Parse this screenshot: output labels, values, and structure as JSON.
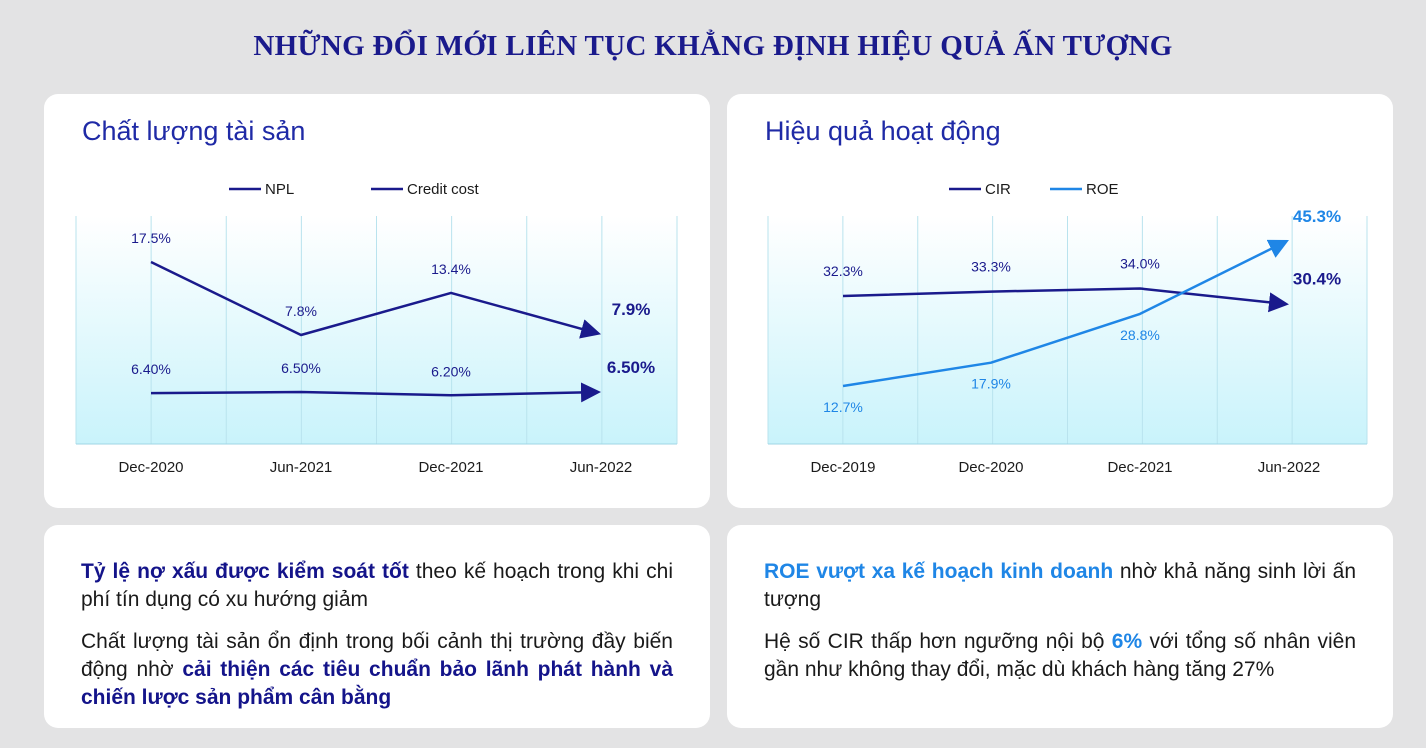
{
  "page_title": "NHỮNG ĐỔI MỚI LIÊN TỤC KHẲNG ĐỊNH HIỆU QUẢ ẤN TƯỢNG",
  "chart_data": [
    {
      "type": "line",
      "title": "Chất lượng tài sản",
      "categories": [
        "Dec-2020",
        "Jun-2021",
        "Dec-2021",
        "Jun-2022"
      ],
      "legend": "top",
      "grid": true,
      "series": [
        {
          "name": "NPL",
          "values": [
            17.5,
            7.8,
            13.4,
            7.9
          ],
          "labels": [
            "17.5%",
            "7.8%",
            "13.4%",
            "7.9%"
          ],
          "color": "#1a1a8c"
        },
        {
          "name": "Credit cost",
          "values": [
            6.4,
            6.5,
            6.2,
            6.5
          ],
          "labels": [
            "6.40%",
            "6.50%",
            "6.20%",
            "6.50%"
          ],
          "color": "#1a1a8c"
        }
      ]
    },
    {
      "type": "line",
      "title": "Hiệu quả hoạt động",
      "categories": [
        "Dec-2019",
        "Dec-2020",
        "Dec-2021",
        "Jun-2022"
      ],
      "legend": "top",
      "grid": true,
      "series": [
        {
          "name": "CIR",
          "values": [
            32.3,
            33.3,
            34.0,
            30.4
          ],
          "labels": [
            "32.3%",
            "33.3%",
            "34.0%",
            "30.4%"
          ],
          "color": "#1a1a8c"
        },
        {
          "name": "ROE",
          "values": [
            12.7,
            17.9,
            28.8,
            45.3
          ],
          "labels": [
            "12.7%",
            "17.9%",
            "28.8%",
            "45.3%"
          ],
          "color": "#1f86e6"
        }
      ]
    }
  ],
  "asset_text": {
    "p1_bold": "Tỷ lệ nợ xấu được kiểm soát tốt",
    "p1_rest": " theo kế hoạch trong khi chi phí tín dụng có xu hướng giảm",
    "p2_start": "Chất lượng tài sản ổn định trong bối cảnh thị trường đầy biến động nhờ ",
    "p2_bold": "cải thiện các tiêu chuẩn bảo lãnh phát hành và chiến lược sản phẩm cân bằng"
  },
  "perf_text": {
    "p1_bold": "ROE vượt xa kế hoạch kinh doanh",
    "p1_rest": " nhờ khả năng sinh lời ấn tượng",
    "p2_start": "Hệ số CIR thấp hơn ngưỡng nội bộ ",
    "p2_bold": "6%",
    "p2_end": " với tổng số nhân viên gần như không thay đổi, mặc dù khách hàng tăng 27%"
  },
  "colors": {
    "navy": "#1a1a8c",
    "blue": "#1f86e6",
    "title_blue": "#1f2aa6",
    "plot_gradient_bottom": "#c9f3fb"
  }
}
